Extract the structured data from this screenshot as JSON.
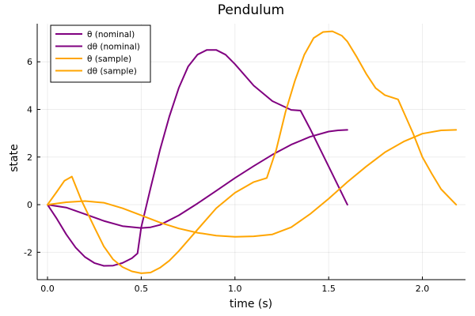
{
  "chart_data": {
    "type": "line",
    "title": "Pendulum",
    "xlabel": "time (s)",
    "ylabel": "state",
    "xlim": [
      -0.055,
      2.23
    ],
    "ylim": [
      -3.15,
      7.6
    ],
    "x_ticks": [
      0.0,
      0.5,
      1.0,
      1.5,
      2.0
    ],
    "x_tick_labels": [
      "0.0",
      "0.5",
      "1.0",
      "1.5",
      "2.0"
    ],
    "y_ticks": [
      -2,
      0,
      2,
      4,
      6
    ],
    "y_tick_labels": [
      "-2",
      "0",
      "2",
      "4",
      "6"
    ],
    "grid": true,
    "legend_position": "top-left",
    "series": [
      {
        "name": "θ (nominal)",
        "color": "#800080",
        "x": [
          0,
          0.1,
          0.2,
          0.3,
          0.4,
          0.5,
          0.55,
          0.6,
          0.7,
          0.8,
          0.9,
          1.0,
          1.1,
          1.2,
          1.3,
          1.4,
          1.5,
          1.55,
          1.6
        ],
        "y": [
          0,
          -0.12,
          -0.4,
          -0.68,
          -0.9,
          -0.98,
          -0.95,
          -0.85,
          -0.45,
          0.05,
          0.58,
          1.12,
          1.62,
          2.1,
          2.52,
          2.85,
          3.07,
          3.12,
          3.14
        ]
      },
      {
        "name": "dθ (nominal)",
        "color": "#800080",
        "x": [
          0,
          0.05,
          0.1,
          0.15,
          0.2,
          0.25,
          0.3,
          0.35,
          0.4,
          0.45,
          0.48,
          0.5,
          0.55,
          0.6,
          0.65,
          0.7,
          0.75,
          0.8,
          0.85,
          0.9,
          0.95,
          1.0,
          1.1,
          1.2,
          1.3,
          1.35,
          1.4,
          1.5,
          1.6
        ],
        "y": [
          0,
          -0.6,
          -1.25,
          -1.8,
          -2.2,
          -2.45,
          -2.57,
          -2.56,
          -2.45,
          -2.25,
          -2.05,
          -0.95,
          0.7,
          2.3,
          3.7,
          4.9,
          5.8,
          6.3,
          6.5,
          6.5,
          6.3,
          5.9,
          5.0,
          4.35,
          3.98,
          3.95,
          3.2,
          1.6,
          0
        ]
      },
      {
        "name": "θ (sample)",
        "color": "#FFA500",
        "x": [
          0,
          0.1,
          0.2,
          0.3,
          0.4,
          0.5,
          0.6,
          0.7,
          0.8,
          0.9,
          1.0,
          1.1,
          1.2,
          1.3,
          1.4,
          1.5,
          1.6,
          1.7,
          1.8,
          1.9,
          2.0,
          2.1,
          2.18
        ],
        "y": [
          0,
          0.1,
          0.15,
          0.08,
          -0.15,
          -0.45,
          -0.75,
          -1.0,
          -1.18,
          -1.3,
          -1.35,
          -1.33,
          -1.25,
          -0.95,
          -0.4,
          0.25,
          0.95,
          1.6,
          2.2,
          2.65,
          2.98,
          3.12,
          3.14
        ]
      },
      {
        "name": "dθ (sample)",
        "color": "#FFA500",
        "x": [
          0,
          0.05,
          0.09,
          0.13,
          0.18,
          0.25,
          0.3,
          0.35,
          0.4,
          0.45,
          0.5,
          0.55,
          0.6,
          0.65,
          0.7,
          0.8,
          0.9,
          1.0,
          1.1,
          1.17,
          1.22,
          1.27,
          1.32,
          1.37,
          1.42,
          1.47,
          1.52,
          1.57,
          1.6,
          1.65,
          1.7,
          1.75,
          1.8,
          1.87,
          1.95,
          2.0,
          2.05,
          2.1,
          2.18
        ],
        "y": [
          0,
          0.55,
          1.0,
          1.18,
          0.2,
          -0.95,
          -1.75,
          -2.3,
          -2.62,
          -2.8,
          -2.88,
          -2.85,
          -2.65,
          -2.35,
          -1.95,
          -1.05,
          -0.15,
          0.5,
          0.95,
          1.12,
          2.3,
          3.9,
          5.2,
          6.3,
          7.0,
          7.25,
          7.28,
          7.1,
          6.85,
          6.2,
          5.5,
          4.9,
          4.6,
          4.42,
          3.0,
          2.0,
          1.3,
          0.65,
          0
        ]
      }
    ]
  }
}
